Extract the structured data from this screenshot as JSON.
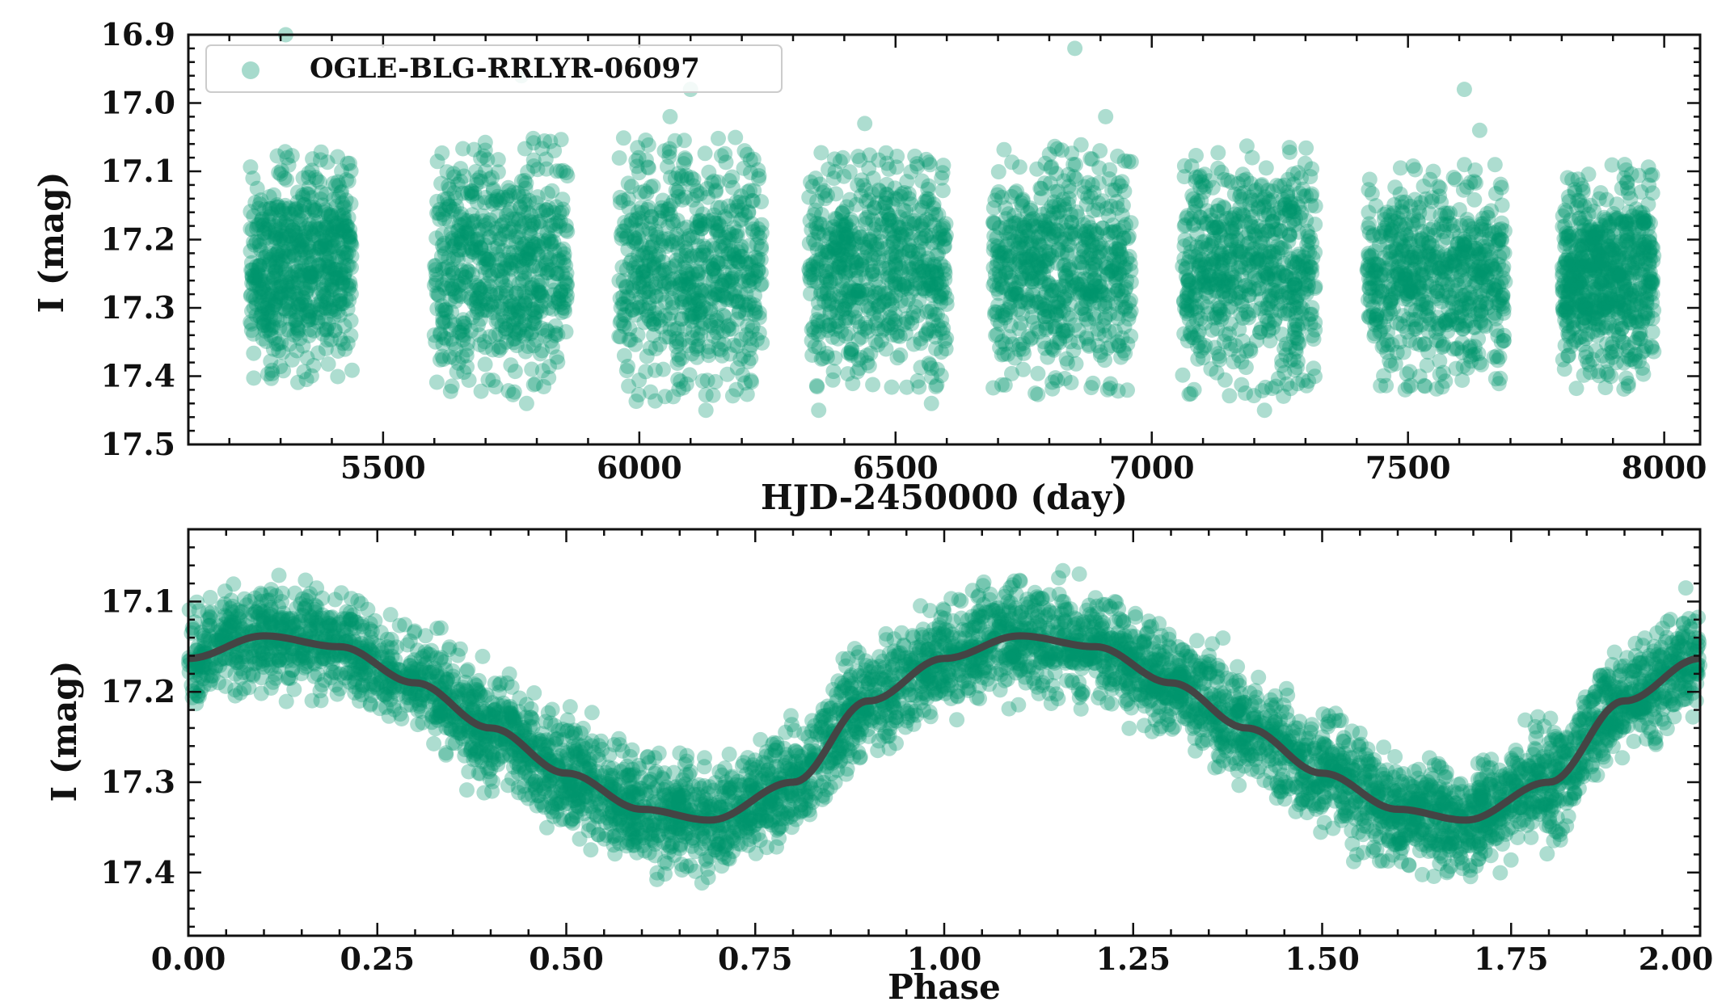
{
  "chart_data": [
    {
      "type": "scatter",
      "xlabel": "HJD-2450000 (day)",
      "ylabel": "I (mag)",
      "xlim": [
        5120,
        8070
      ],
      "ylim": [
        17.5,
        16.9
      ],
      "y_inverted": true,
      "xticks": [
        "5500",
        "6000",
        "6500",
        "7000",
        "7500",
        "8000"
      ],
      "yticks": [
        "16.9",
        "17.0",
        "17.1",
        "17.2",
        "17.3",
        "17.4",
        "17.5"
      ],
      "legend": {
        "label": "OGLE-BLG-RRLYR-06097",
        "placement": "top-left"
      },
      "point_color": "#00956e",
      "series": [
        {
          "name": "OGLE-BLG-RRLYR-06097",
          "seasons": [
            {
              "x_start": 5240,
              "x_end": 5440,
              "y_low": 17.39,
              "y_high": 17.09
            },
            {
              "x_start": 5600,
              "x_end": 5860,
              "y_low": 17.41,
              "y_high": 17.07
            },
            {
              "x_start": 5960,
              "x_end": 6240,
              "y_low": 17.42,
              "y_high": 17.07
            },
            {
              "x_start": 6330,
              "x_end": 6600,
              "y_low": 17.4,
              "y_high": 17.09
            },
            {
              "x_start": 6690,
              "x_end": 6960,
              "y_low": 17.41,
              "y_high": 17.08
            },
            {
              "x_start": 7060,
              "x_end": 7320,
              "y_low": 17.41,
              "y_high": 17.08
            },
            {
              "x_start": 7420,
              "x_end": 7690,
              "y_low": 17.4,
              "y_high": 17.11
            },
            {
              "x_start": 7800,
              "x_end": 7980,
              "y_low": 17.4,
              "y_high": 17.11
            }
          ],
          "outliers": [
            {
              "x": 6850,
              "y": 16.92
            },
            {
              "x": 7610,
              "y": 16.98
            },
            {
              "x": 7640,
              "y": 17.04
            },
            {
              "x": 6100,
              "y": 16.98
            },
            {
              "x": 5770,
              "y": 16.96
            },
            {
              "x": 6910,
              "y": 17.02
            },
            {
              "x": 6060,
              "y": 17.02
            },
            {
              "x": 6440,
              "y": 17.03
            },
            {
              "x": 5310,
              "y": 16.9
            },
            {
              "x": 6130,
              "y": 17.45
            },
            {
              "x": 6350,
              "y": 17.45
            },
            {
              "x": 7220,
              "y": 17.45
            },
            {
              "x": 5780,
              "y": 17.44
            },
            {
              "x": 6570,
              "y": 17.44
            }
          ]
        }
      ]
    },
    {
      "type": "scatter",
      "xlabel": "Phase",
      "ylabel": "I (mag)",
      "xlim": [
        0.0,
        2.0
      ],
      "ylim": [
        17.47,
        17.02
      ],
      "y_inverted": true,
      "xticks": [
        "0.00",
        "0.25",
        "0.50",
        "0.75",
        "1.00",
        "1.25",
        "1.50",
        "1.75",
        "2.00"
      ],
      "yticks": [
        "17.1",
        "17.2",
        "17.3",
        "17.4"
      ],
      "point_color": "#00956e",
      "fit_color": "#444444",
      "series": [
        {
          "type": "scatter",
          "model_points": [
            {
              "phase": 0.0,
              "mag": 17.163
            },
            {
              "phase": 0.1,
              "mag": 17.138
            },
            {
              "phase": 0.2,
              "mag": 17.15
            },
            {
              "phase": 0.3,
              "mag": 17.19
            },
            {
              "phase": 0.4,
              "mag": 17.24
            },
            {
              "phase": 0.5,
              "mag": 17.29
            },
            {
              "phase": 0.6,
              "mag": 17.33
            },
            {
              "phase": 0.69,
              "mag": 17.342
            },
            {
              "phase": 0.8,
              "mag": 17.3
            },
            {
              "phase": 0.9,
              "mag": 17.21
            },
            {
              "phase": 1.0,
              "mag": 17.163
            }
          ],
          "scatter_halfwidth": 0.05
        },
        {
          "type": "line",
          "points": [
            {
              "phase": 0.0,
              "mag": 17.163
            },
            {
              "phase": 0.1,
              "mag": 17.138
            },
            {
              "phase": 0.2,
              "mag": 17.15
            },
            {
              "phase": 0.3,
              "mag": 17.19
            },
            {
              "phase": 0.4,
              "mag": 17.24
            },
            {
              "phase": 0.5,
              "mag": 17.29
            },
            {
              "phase": 0.6,
              "mag": 17.33
            },
            {
              "phase": 0.69,
              "mag": 17.342
            },
            {
              "phase": 0.8,
              "mag": 17.3
            },
            {
              "phase": 0.9,
              "mag": 17.21
            },
            {
              "phase": 1.0,
              "mag": 17.163
            },
            {
              "phase": 1.1,
              "mag": 17.138
            },
            {
              "phase": 1.2,
              "mag": 17.15
            },
            {
              "phase": 1.3,
              "mag": 17.19
            },
            {
              "phase": 1.4,
              "mag": 17.24
            },
            {
              "phase": 1.5,
              "mag": 17.29
            },
            {
              "phase": 1.6,
              "mag": 17.33
            },
            {
              "phase": 1.69,
              "mag": 17.342
            },
            {
              "phase": 1.8,
              "mag": 17.3
            },
            {
              "phase": 1.9,
              "mag": 17.21
            },
            {
              "phase": 2.0,
              "mag": 17.163
            }
          ]
        }
      ]
    }
  ]
}
